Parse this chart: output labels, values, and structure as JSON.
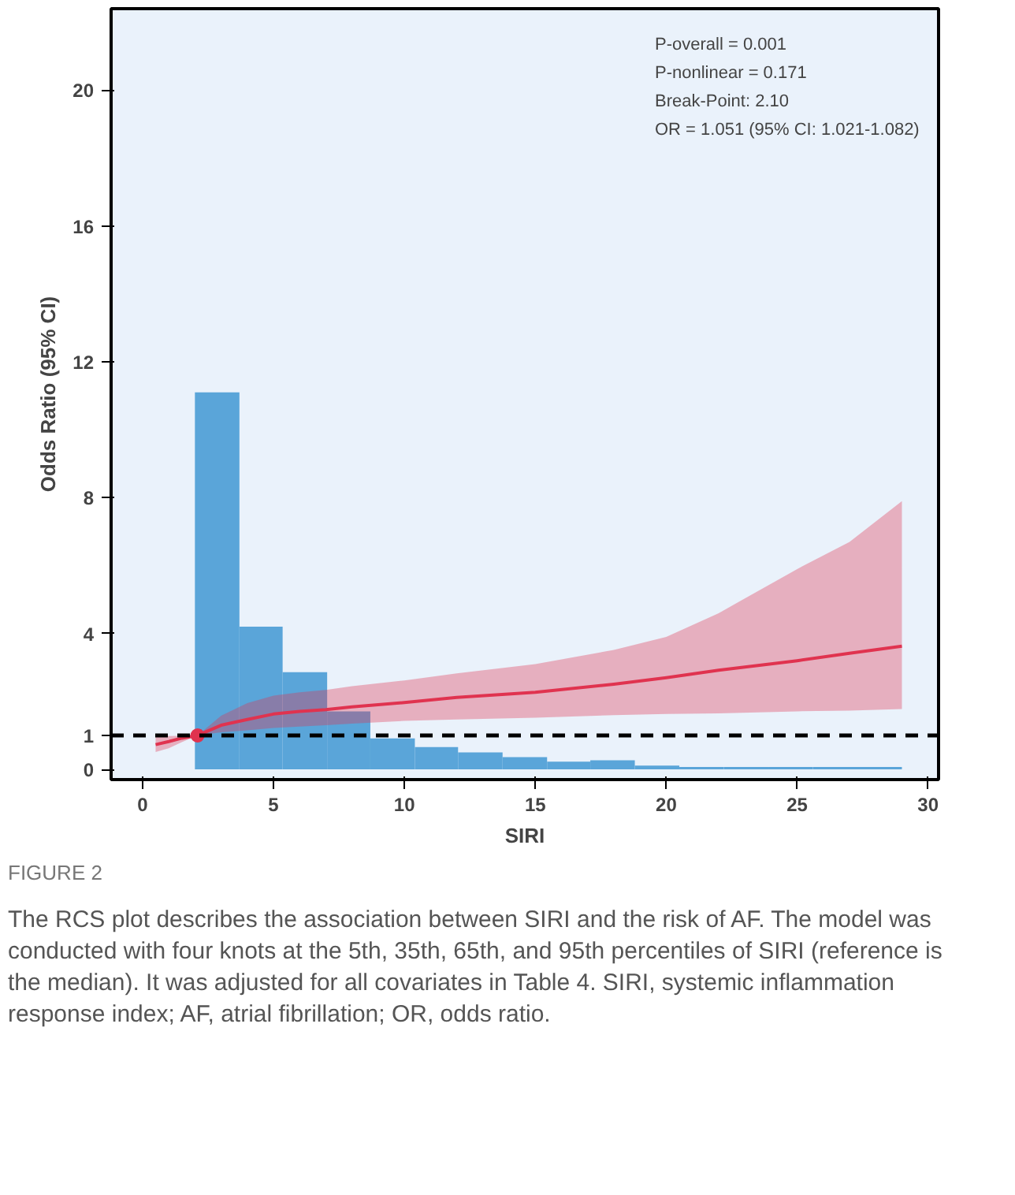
{
  "chart_data": {
    "type": "histogram",
    "title": "FIGURE 2",
    "xlabel": "SIRI",
    "ylabel": "Odds Ratio (95% CI)",
    "bins": [
      2.0,
      3.7,
      5.35,
      7.05,
      8.7,
      10.4,
      12.05,
      13.75,
      15.45,
      17.1,
      18.8,
      20.5,
      22.2,
      23.9,
      25.6,
      27.3,
      29.0
    ],
    "values": [
      11.1,
      4.2,
      2.86,
      1.71,
      0.91,
      0.66,
      0.5,
      0.36,
      0.23,
      0.27,
      0.11,
      0.07,
      0.07,
      0.07,
      0.07,
      0.07
    ],
    "color": "#5aa5d9",
    "series": [
      {
        "type": "line",
        "color": "#e0334f",
        "x": [
          0.5,
          1,
          1.5,
          2.1,
          3,
          4,
          5,
          6,
          7,
          8,
          10,
          12,
          15,
          18,
          20,
          22,
          25,
          27,
          29
        ],
        "values": [
          0.73,
          0.82,
          0.92,
          1.0,
          1.3,
          1.47,
          1.63,
          1.71,
          1.76,
          1.84,
          1.97,
          2.12,
          2.27,
          2.51,
          2.7,
          2.92,
          3.2,
          3.42,
          3.63
        ],
        "lower": [
          0.51,
          0.62,
          0.8,
          1.0,
          1.09,
          1.15,
          1.22,
          1.26,
          1.3,
          1.35,
          1.43,
          1.47,
          1.52,
          1.6,
          1.63,
          1.65,
          1.71,
          1.73,
          1.78
        ],
        "upper": [
          0.97,
          0.98,
          0.99,
          1.0,
          1.58,
          1.95,
          2.17,
          2.27,
          2.34,
          2.45,
          2.62,
          2.83,
          3.1,
          3.52,
          3.9,
          4.6,
          5.9,
          6.7,
          7.9
        ]
      },
      {
        "type": "scatter",
        "color": "#e0334f",
        "marker": "circle",
        "x": [
          2.1
        ],
        "values": [
          1
        ]
      }
    ],
    "ref_lines": [
      {
        "axis": "y",
        "value": 1,
        "color": "#000000",
        "line_style": "dashed"
      }
    ],
    "annotations": [
      "P-overall = 0.001",
      "P-nonlinear = 0.171",
      "Break-Point: 2.10",
      "OR = 1.051 (95% CI: 1.021-1.082)",
      "The RCS plot describes the association between SIRI and the risk of AF. The model was conducted with four knots at the 5th, 35th, 65th, and 95th percentiles of SIRI (reference is the median). It was adjusted for all covariates in Table 4. SIRI, systemic inflammation response index; AF, atrial fibrillation; OR, odds ratio."
    ],
    "xlim": [
      -1.2,
      30.4
    ],
    "ylim": [
      -0.3,
      22.4
    ],
    "xticks": [
      0,
      5,
      10,
      15,
      20,
      25,
      30
    ],
    "yticks": [
      0,
      1,
      4,
      8,
      12,
      16,
      20
    ],
    "grid": false
  }
}
